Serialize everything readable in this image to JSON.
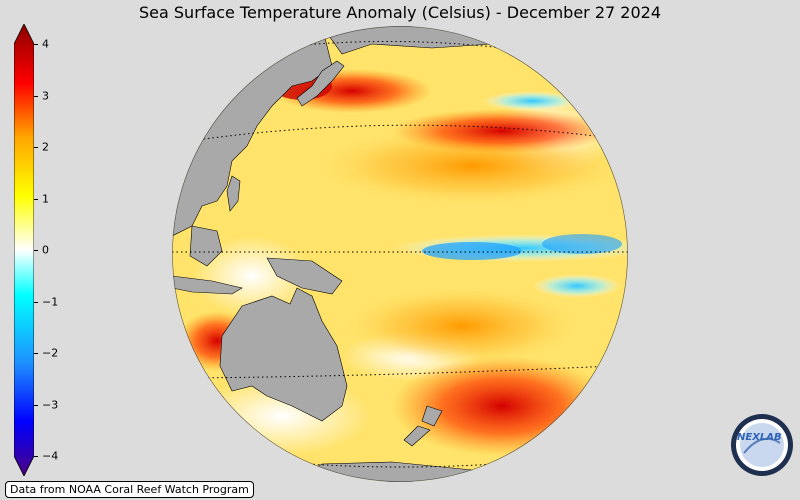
{
  "title": "Sea Surface Temperature Anomaly (Celsius) - December 27 2024",
  "colorbar": {
    "ticks": [
      "4",
      "3",
      "2",
      "1",
      "0",
      "−1",
      "−2",
      "−3",
      "−4"
    ],
    "min": -4,
    "max": 4,
    "colors": [
      "#4b0082",
      "#0000ff",
      "#1e90ff",
      "#00ffff",
      "#ffffff",
      "#ffff00",
      "#ffa500",
      "#ff0000",
      "#8b0000"
    ]
  },
  "map": {
    "land_color": "#a9a9a9",
    "ocean_base_color": "#ffe36a"
  },
  "credit": "Data from NOAA Coral Reef Watch Program",
  "logo": {
    "text": "NEXLAB"
  }
}
